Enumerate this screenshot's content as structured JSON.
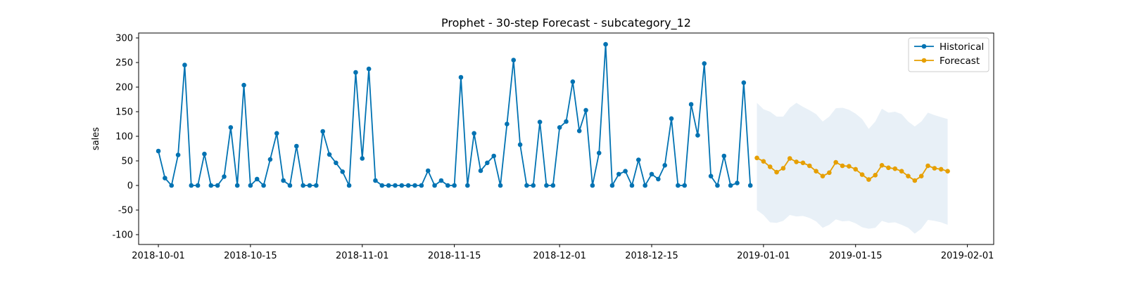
{
  "chart_data": {
    "type": "line",
    "title": "Prophet - 30-step Forecast - subcategory_12",
    "xlabel": "",
    "ylabel": "sales",
    "xlim": [
      "2018-09-28",
      "2019-02-05"
    ],
    "ylim": [
      -120,
      310
    ],
    "yticks": [
      -100,
      -50,
      0,
      50,
      100,
      150,
      200,
      250,
      300
    ],
    "xticks": [
      "2018-10-01",
      "2018-10-15",
      "2018-11-01",
      "2018-11-15",
      "2018-12-01",
      "2018-12-15",
      "2019-01-01",
      "2019-01-15",
      "2019-02-01"
    ],
    "legend": {
      "position": "top-right"
    },
    "grid": false,
    "series": [
      {
        "name": "Historical",
        "color": "#0072b2",
        "start": "2018-10-01",
        "values": [
          70,
          15,
          0,
          62,
          245,
          0,
          0,
          64,
          0,
          0,
          18,
          118,
          0,
          204,
          0,
          13,
          0,
          53,
          106,
          10,
          0,
          80,
          0,
          0,
          0,
          110,
          63,
          46,
          28,
          0,
          230,
          55,
          237,
          10,
          0,
          0,
          0,
          0,
          0,
          0,
          0,
          30,
          0,
          10,
          0,
          0,
          220,
          0,
          106,
          30,
          46,
          60,
          0,
          125,
          255,
          83,
          0,
          0,
          129,
          0,
          0,
          118,
          130,
          211,
          111,
          153,
          0,
          66,
          287,
          0,
          23,
          29,
          0,
          52,
          0,
          23,
          13,
          41,
          136,
          0,
          0,
          165,
          102,
          248,
          19,
          0,
          60,
          0,
          5,
          209,
          0
        ]
      },
      {
        "name": "Forecast",
        "color": "#e69f00",
        "start": "2018-12-31",
        "values": [
          56,
          49,
          38,
          27,
          35,
          55,
          48,
          46,
          40,
          29,
          19,
          26,
          47,
          40,
          39,
          33,
          22,
          12,
          21,
          41,
          36,
          34,
          29,
          19,
          10,
          19,
          40,
          35,
          33,
          29
        ],
        "lower": [
          -50,
          -60,
          -75,
          -76,
          -72,
          -60,
          -63,
          -62,
          -66,
          -73,
          -86,
          -80,
          -69,
          -73,
          -72,
          -77,
          -85,
          -88,
          -86,
          -72,
          -76,
          -75,
          -80,
          -86,
          -98,
          -88,
          -70,
          -72,
          -75,
          -80
        ],
        "upper": [
          168,
          155,
          150,
          140,
          140,
          158,
          168,
          160,
          153,
          145,
          130,
          140,
          157,
          158,
          154,
          146,
          135,
          115,
          130,
          156,
          148,
          150,
          145,
          130,
          120,
          130,
          148,
          143,
          139,
          135
        ]
      }
    ]
  }
}
